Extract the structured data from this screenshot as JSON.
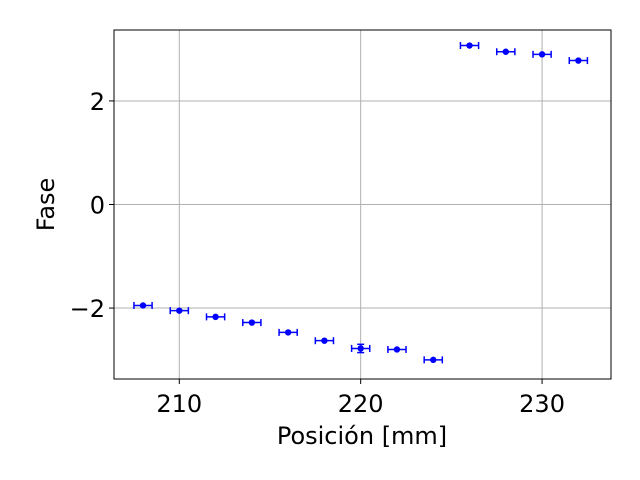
{
  "chart_data": {
    "type": "scatter",
    "xlabel": "Posición [mm]",
    "ylabel": "Fase",
    "xlim": [
      206.4,
      233.8
    ],
    "ylim": [
      -3.37,
      3.37
    ],
    "xticks": [
      210,
      220,
      230
    ],
    "yticks": [
      -2,
      0,
      2
    ],
    "ytick_labels": [
      "−2",
      "0",
      "2"
    ],
    "grid": true,
    "marker_color": "#0000ff",
    "x_error": 0.5,
    "series": [
      {
        "points": [
          {
            "x": 208,
            "y": -1.95,
            "yerr": 0.0
          },
          {
            "x": 210,
            "y": -2.05,
            "yerr": 0.0
          },
          {
            "x": 212,
            "y": -2.17,
            "yerr": 0.0
          },
          {
            "x": 214,
            "y": -2.28,
            "yerr": 0.0
          },
          {
            "x": 216,
            "y": -2.47,
            "yerr": 0.0
          },
          {
            "x": 218,
            "y": -2.63,
            "yerr": 0.0
          },
          {
            "x": 220,
            "y": -2.78,
            "yerr": 0.08
          },
          {
            "x": 222,
            "y": -2.8,
            "yerr": 0.0
          },
          {
            "x": 224,
            "y": -3.0,
            "yerr": 0.0
          },
          {
            "x": 226,
            "y": 3.07,
            "yerr": 0.0
          },
          {
            "x": 228,
            "y": 2.95,
            "yerr": 0.0
          },
          {
            "x": 230,
            "y": 2.9,
            "yerr": 0.0
          },
          {
            "x": 232,
            "y": 2.78,
            "yerr": 0.0
          }
        ]
      }
    ]
  }
}
